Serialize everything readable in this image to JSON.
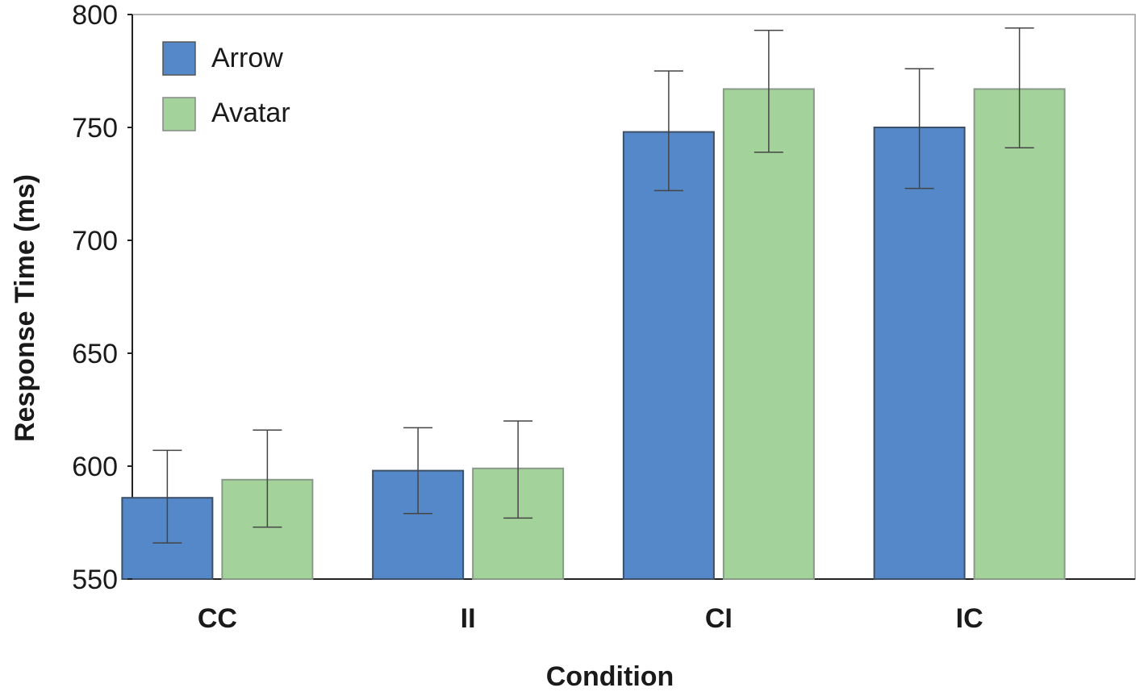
{
  "chart_data": {
    "type": "bar",
    "title": "",
    "xlabel": "Condition",
    "ylabel": "Response Time (ms)",
    "ylim": [
      550,
      800
    ],
    "yticks": [
      550,
      600,
      650,
      700,
      750,
      800
    ],
    "categories": [
      "CC",
      "II",
      "CI",
      "IC"
    ],
    "series": [
      {
        "name": "Arrow",
        "color": "#5488c8",
        "values": [
          586,
          598,
          748,
          750
        ],
        "error_low": [
          566,
          579,
          722,
          723
        ],
        "error_high": [
          607,
          617,
          775,
          776
        ]
      },
      {
        "name": "Avatar",
        "color": "#a3d39a",
        "values": [
          594,
          599,
          767,
          767
        ],
        "error_low": [
          573,
          577,
          739,
          741
        ],
        "error_high": [
          616,
          620,
          793,
          794
        ]
      }
    ],
    "legend_position": "top-left",
    "grid": false
  }
}
